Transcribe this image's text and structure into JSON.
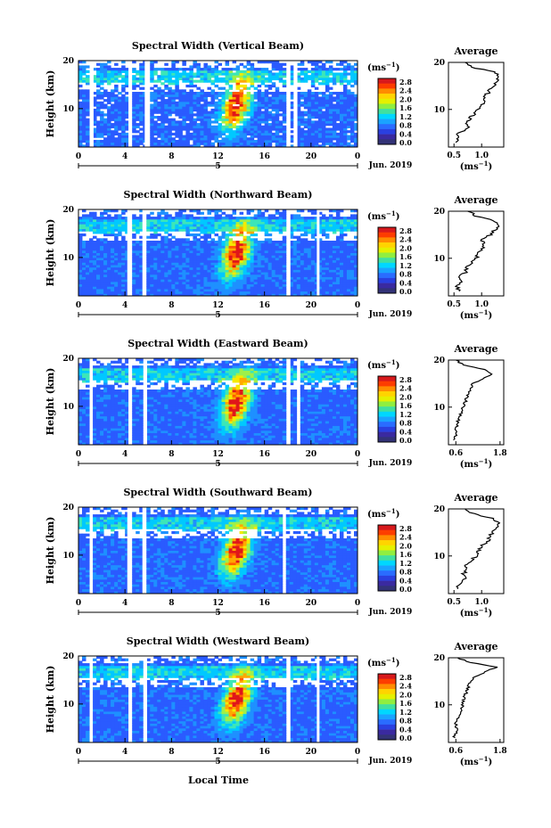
{
  "figure": {
    "shared_xlabel": "Local Time",
    "date_label": "Jun. 2019",
    "day_marker": "5",
    "colorbar_unit_base": "(ms",
    "colorbar_unit_sup": "−1",
    "colorbar_unit_close": ")",
    "colorbar_ticks": [
      "2.8",
      "2.4",
      "2.0",
      "1.6",
      "1.2",
      "0.8",
      "0.4",
      "0.0"
    ],
    "colorbar_colors": [
      "#d7191c",
      "#fd3d00",
      "#ff8c00",
      "#ffd400",
      "#e5f000",
      "#90ee40",
      "#40e0a0",
      "#00d7ff",
      "#1aa3ff",
      "#2a6cff",
      "#2a40e0",
      "#3a2aa0",
      "#333377"
    ],
    "colormap": [
      "#3030a0",
      "#2a5bff",
      "#1e90ff",
      "#00c8ff",
      "#3ce6b8",
      "#9ef04a",
      "#f5ea00",
      "#ffa800",
      "#ff5a00",
      "#e0161a"
    ],
    "avg_title": "Average",
    "avg_xlabel_base": "(ms",
    "avg_xlabel_sup": "−1",
    "avg_xlabel_close": ")"
  },
  "chart_data": [
    {
      "type": "heatmap",
      "title": "Spectral Width (Vertical Beam)",
      "ylabel": "Height (km)",
      "xlabel": "Local Time",
      "x_ticks": [
        "0",
        "4",
        "8",
        "12",
        "16",
        "20",
        "0"
      ],
      "y_ticks": [
        "20",
        "10"
      ],
      "xlim": [
        0,
        24
      ],
      "ylim": [
        2,
        20
      ],
      "date": "Jun. 2019",
      "colorbar": {
        "unit": "ms−1",
        "range": [
          0.0,
          3.0
        ]
      },
      "data_gaps_hours": [
        [
          1.0,
          1.3
        ],
        [
          4.3,
          4.6
        ],
        [
          5.7,
          6.0
        ],
        [
          18.0,
          18.2
        ],
        [
          18.6,
          18.8
        ]
      ],
      "average_profile": {
        "title": "Average",
        "xlabel": "(ms−1)",
        "x_ticks": [
          "0.5",
          "1.0"
        ],
        "xlim": [
          0.4,
          1.4
        ],
        "y_ticks": [
          "20",
          "10"
        ],
        "height_km": [
          3,
          4,
          5,
          6,
          7,
          8,
          9,
          10,
          11,
          12,
          13,
          14,
          15,
          16,
          17,
          18,
          19,
          20
        ],
        "width": [
          0.55,
          0.6,
          0.58,
          0.75,
          0.7,
          0.78,
          0.85,
          0.95,
          1.0,
          1.05,
          1.08,
          1.15,
          1.2,
          1.28,
          1.32,
          1.2,
          0.8,
          0.7
        ]
      }
    },
    {
      "type": "heatmap",
      "title": "Spectral Width (Northward Beam)",
      "ylabel": "Height (km)",
      "xlabel": "Local Time",
      "x_ticks": [
        "0",
        "4",
        "8",
        "12",
        "16",
        "20",
        "0"
      ],
      "y_ticks": [
        "20",
        "10"
      ],
      "xlim": [
        0,
        24
      ],
      "ylim": [
        2,
        20
      ],
      "date": "Jun. 2019",
      "colorbar": {
        "unit": "ms−1",
        "range": [
          0.0,
          3.0
        ]
      },
      "data_gaps_hours": [
        [
          4.2,
          4.5
        ],
        [
          5.5,
          5.8
        ],
        [
          18.0,
          18.2
        ],
        [
          20.5,
          20.7
        ]
      ],
      "average_profile": {
        "title": "Average",
        "xlabel": "(ms−1)",
        "x_ticks": [
          "0.5",
          "1.0"
        ],
        "xlim": [
          0.4,
          1.4
        ],
        "y_ticks": [
          "20",
          "10"
        ],
        "height_km": [
          3,
          4,
          5,
          6,
          7,
          8,
          9,
          10,
          11,
          12,
          13,
          14,
          15,
          16,
          17,
          18,
          19,
          20
        ],
        "width": [
          0.6,
          0.55,
          0.65,
          0.6,
          0.7,
          0.72,
          0.8,
          0.9,
          0.95,
          1.0,
          1.05,
          1.0,
          1.15,
          1.25,
          1.3,
          1.2,
          0.9,
          0.75
        ]
      }
    },
    {
      "type": "heatmap",
      "title": "Spectral Width (Eastward Beam)",
      "ylabel": "Height (km)",
      "xlabel": "Local Time",
      "x_ticks": [
        "0",
        "4",
        "8",
        "12",
        "16",
        "20",
        "0"
      ],
      "y_ticks": [
        "20",
        "10"
      ],
      "xlim": [
        0,
        24
      ],
      "ylim": [
        2,
        20
      ],
      "date": "Jun. 2019",
      "colorbar": {
        "unit": "ms−1",
        "range": [
          0.0,
          3.0
        ]
      },
      "data_gaps_hours": [
        [
          1.0,
          1.2
        ],
        [
          4.3,
          4.6
        ],
        [
          5.6,
          5.9
        ],
        [
          18.0,
          18.2
        ],
        [
          18.8,
          19.0
        ]
      ],
      "average_profile": {
        "title": "Average",
        "xlabel": "(ms−1)",
        "x_ticks": [
          "0.6",
          "1.8"
        ],
        "xlim": [
          0.4,
          1.9
        ],
        "y_ticks": [
          "20",
          "10"
        ],
        "height_km": [
          3,
          4,
          5,
          6,
          7,
          8,
          9,
          10,
          11,
          12,
          13,
          14,
          15,
          16,
          17,
          18,
          19,
          20
        ],
        "width": [
          0.55,
          0.6,
          0.6,
          0.62,
          0.65,
          0.7,
          0.75,
          0.8,
          0.85,
          0.9,
          0.95,
          1.0,
          1.05,
          1.3,
          1.6,
          1.4,
          0.8,
          0.6
        ]
      }
    },
    {
      "type": "heatmap",
      "title": "Spectral Width (Southward Beam)",
      "ylabel": "Height (km)",
      "xlabel": "Local Time",
      "x_ticks": [
        "0",
        "4",
        "8",
        "12",
        "16",
        "20",
        "0"
      ],
      "y_ticks": [
        "20",
        "10"
      ],
      "xlim": [
        0,
        24
      ],
      "ylim": [
        2,
        20
      ],
      "date": "Jun. 2019",
      "colorbar": {
        "unit": "ms−1",
        "range": [
          0.0,
          3.0
        ]
      },
      "data_gaps_hours": [
        [
          1.0,
          1.2
        ],
        [
          4.2,
          4.5
        ],
        [
          5.5,
          5.8
        ],
        [
          17.6,
          17.8
        ]
      ],
      "average_profile": {
        "title": "Average",
        "xlabel": "(ms−1)",
        "x_ticks": [
          "0.5",
          "1.0"
        ],
        "xlim": [
          0.4,
          1.4
        ],
        "y_ticks": [
          "20",
          "10"
        ],
        "height_km": [
          3,
          4,
          5,
          6,
          7,
          8,
          9,
          10,
          11,
          12,
          13,
          14,
          15,
          16,
          17,
          18,
          19,
          20
        ],
        "width": [
          0.55,
          0.6,
          0.7,
          0.65,
          0.75,
          0.7,
          0.8,
          0.9,
          0.95,
          1.0,
          1.1,
          1.15,
          1.2,
          1.25,
          1.3,
          1.2,
          0.85,
          0.7
        ]
      }
    },
    {
      "type": "heatmap",
      "title": "Spectral Width (Westward Beam)",
      "ylabel": "Height (km)",
      "xlabel": "Local Time",
      "x_ticks": [
        "0",
        "4",
        "8",
        "12",
        "16",
        "20",
        "0"
      ],
      "y_ticks": [
        "20",
        "10"
      ],
      "xlim": [
        0,
        24
      ],
      "ylim": [
        2,
        20
      ],
      "date": "Jun. 2019",
      "colorbar": {
        "unit": "ms−1",
        "range": [
          0.0,
          3.0
        ]
      },
      "data_gaps_hours": [
        [
          1.0,
          1.2
        ],
        [
          4.3,
          4.6
        ],
        [
          5.6,
          5.9
        ],
        [
          18.0,
          18.2
        ],
        [
          20.5,
          20.7
        ]
      ],
      "average_profile": {
        "title": "Average",
        "xlabel": "(ms−1)",
        "x_ticks": [
          "0.6",
          "1.8"
        ],
        "xlim": [
          0.4,
          1.9
        ],
        "y_ticks": [
          "20",
          "10"
        ],
        "height_km": [
          3,
          4,
          5,
          6,
          7,
          8,
          9,
          10,
          11,
          12,
          13,
          14,
          15,
          16,
          17,
          18,
          19,
          20
        ],
        "width": [
          0.55,
          0.6,
          0.62,
          0.6,
          0.65,
          0.7,
          0.75,
          0.78,
          0.8,
          0.85,
          0.9,
          0.95,
          1.0,
          1.1,
          1.4,
          1.7,
          1.0,
          0.65
        ]
      }
    }
  ]
}
